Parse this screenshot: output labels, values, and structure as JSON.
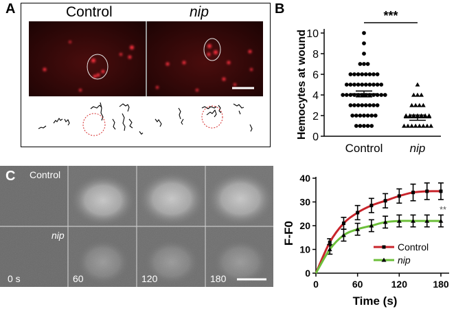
{
  "figure": {
    "panels": {
      "A": {
        "letter": "A",
        "titles": [
          "Control",
          "nip"
        ]
      },
      "B": {
        "letter": "B",
        "significance": "***"
      },
      "C": {
        "letter": "C",
        "row_labels": [
          "Control",
          "nip"
        ],
        "time_labels": [
          "0 s",
          "60",
          "120",
          "180"
        ],
        "significance": "**"
      }
    },
    "colors": {
      "control_line": "#c8242b",
      "nip_line": "#6cbf3a",
      "fluor_red": "#ff2030"
    }
  },
  "chart_data": [
    {
      "type": "scatter",
      "panel": "B",
      "categories": [
        "Control",
        "nip"
      ],
      "ylabel": "Hemocytes at wound",
      "xlabel": "",
      "ylim": [
        0,
        10
      ],
      "yticks": [
        0,
        2,
        4,
        6,
        8,
        10
      ],
      "series": [
        {
          "name": "Control",
          "marker": "circle",
          "values": [
            10,
            9,
            8,
            7,
            7,
            7,
            6,
            6,
            6,
            6,
            6,
            6,
            6,
            6,
            5,
            5,
            5,
            5,
            5,
            5,
            5,
            5,
            5,
            5,
            4,
            4,
            4,
            4,
            4,
            4,
            4,
            4,
            4,
            4,
            4,
            4,
            3,
            3,
            3,
            3,
            3,
            3,
            3,
            3,
            2,
            2,
            2,
            2,
            2,
            2,
            2,
            1,
            1,
            1,
            1,
            1
          ],
          "mean": 4.1,
          "sem": 0.28
        },
        {
          "name": "nip",
          "marker": "triangle",
          "values": [
            5,
            4,
            4,
            4,
            3,
            3,
            3,
            3,
            2,
            2,
            2,
            2,
            2,
            2,
            2,
            1,
            1,
            1,
            1,
            1,
            1,
            1,
            1
          ],
          "mean": 1.8,
          "sem": 0.25
        }
      ]
    },
    {
      "type": "line",
      "panel": "C",
      "xlabel": "Time (s)",
      "ylabel": "F-F0",
      "xlim": [
        0,
        180
      ],
      "ylim": [
        0,
        40
      ],
      "xticks": [
        0,
        60,
        120,
        180
      ],
      "yticks": [
        0,
        10,
        20,
        30,
        40
      ],
      "legend": "bottom-right",
      "series": [
        {
          "name": "Control",
          "x": [
            0,
            20,
            40,
            60,
            80,
            100,
            120,
            140,
            160,
            180
          ],
          "y": [
            0,
            13,
            21,
            25.5,
            28.5,
            30.5,
            32.5,
            34,
            34.5,
            34.5
          ],
          "err": [
            0,
            1.5,
            2.5,
            3,
            3,
            3,
            3,
            3.5,
            3.5,
            3.5
          ]
        },
        {
          "name": "nip",
          "x": [
            0,
            20,
            40,
            60,
            80,
            100,
            120,
            140,
            160,
            180
          ],
          "y": [
            0,
            10,
            16,
            18.5,
            20,
            21.5,
            22,
            22,
            22,
            22
          ],
          "err": [
            0,
            2,
            2.5,
            2.5,
            2.5,
            2.5,
            2.5,
            2.5,
            2.5,
            2.5
          ]
        }
      ]
    }
  ]
}
